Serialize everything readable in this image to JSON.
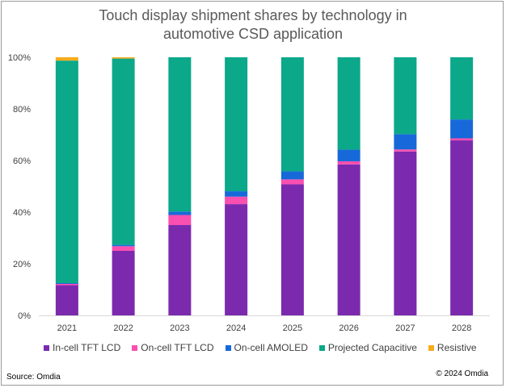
{
  "chart_data": {
    "type": "bar",
    "stacked": true,
    "title_lines": [
      "Touch display shipment shares by technology in",
      "automotive CSD application"
    ],
    "categories": [
      "2021",
      "2022",
      "2023",
      "2024",
      "2025",
      "2026",
      "2027",
      "2028"
    ],
    "y_ticks": [
      "0%",
      "20%",
      "40%",
      "60%",
      "80%",
      "100%"
    ],
    "ylim": [
      0,
      100
    ],
    "grid": false,
    "legend_position": "bottom",
    "series": [
      {
        "name": "In-cell TFT LCD",
        "color": "#7B2AAE",
        "values": [
          11.7,
          25,
          35,
          43.1,
          50.8,
          58.5,
          63.5,
          67.8
        ]
      },
      {
        "name": "On-cell TFT LCD",
        "color": "#F94FB0",
        "values": [
          0.5,
          1.8,
          3.9,
          2.9,
          1.9,
          1.2,
          0.8,
          0.8
        ]
      },
      {
        "name": "On-cell AMOLED",
        "color": "#1769D9",
        "values": [
          0.3,
          0.5,
          1.3,
          2.1,
          3.1,
          4.5,
          5.9,
          7.3
        ]
      },
      {
        "name": "Projected Capacitive",
        "color": "#0BA88A",
        "values": [
          86.2,
          72.2,
          59.8,
          51.9,
          44.2,
          35.8,
          29.8,
          24.1
        ]
      },
      {
        "name": "Resistive",
        "color": "#F7AC1C",
        "values": [
          1.3,
          0.5,
          0,
          0,
          0,
          0,
          0,
          0
        ]
      }
    ]
  },
  "footer": {
    "source": "Source: Omdia",
    "copyright": "© 2024 Omdia"
  }
}
